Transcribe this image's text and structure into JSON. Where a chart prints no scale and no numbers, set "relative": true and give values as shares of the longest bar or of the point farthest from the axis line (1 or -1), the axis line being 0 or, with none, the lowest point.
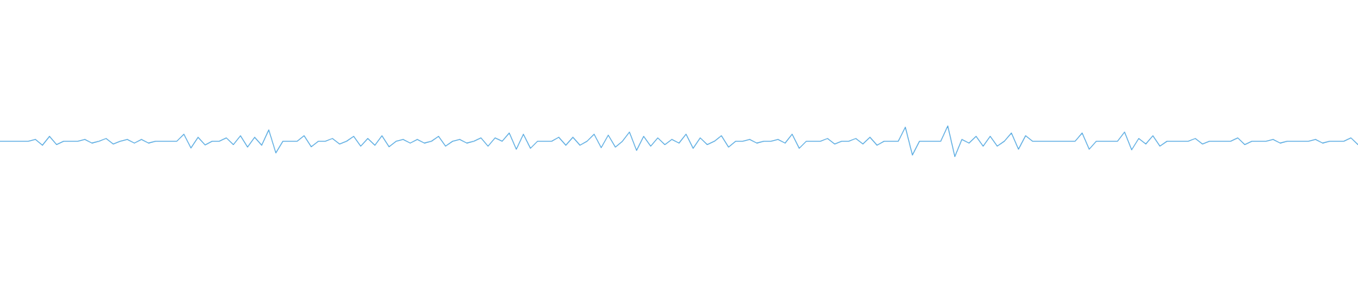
{
  "chart_data": {
    "type": "line",
    "relative": true,
    "categories": [
      null,
      null,
      null,
      null,
      null,
      null,
      null,
      null,
      null,
      null,
      null,
      null,
      null,
      null,
      null,
      null,
      null,
      null,
      null,
      null,
      null,
      null,
      null,
      null,
      null,
      null,
      null,
      null,
      null,
      null,
      null,
      null,
      null,
      null,
      null,
      null,
      null,
      null,
      null,
      null,
      null,
      null,
      null,
      null,
      null,
      null,
      null,
      null,
      null,
      null,
      null,
      null,
      null,
      null,
      null,
      null,
      null,
      null,
      null,
      null,
      null,
      null,
      null,
      null,
      null,
      null,
      null,
      null,
      null,
      null,
      null,
      null,
      null,
      null,
      null,
      null,
      null,
      null,
      null,
      null,
      null,
      null,
      null,
      null,
      null,
      null,
      null,
      null,
      null,
      null,
      null,
      null,
      null,
      null,
      null,
      null,
      null,
      null,
      null,
      null,
      null,
      null,
      null,
      null,
      null,
      null,
      null,
      null,
      null,
      null,
      null,
      null,
      null,
      null,
      null,
      null,
      null,
      null,
      null,
      null,
      null,
      null,
      null,
      null,
      null,
      null,
      null,
      null,
      null,
      null,
      null,
      null,
      null,
      null,
      null,
      null,
      null,
      null,
      null,
      null,
      null,
      null,
      null,
      null,
      null,
      null,
      null,
      null,
      null,
      null,
      null,
      null,
      null,
      null,
      null,
      null,
      null,
      null,
      null,
      null,
      null,
      null,
      null,
      null,
      null,
      null,
      null,
      null,
      null,
      null,
      null,
      null,
      null,
      null,
      null,
      null,
      null,
      null,
      null,
      null,
      null,
      null,
      null,
      null,
      null,
      null,
      null,
      null,
      null,
      null,
      null,
      null,
      null
    ],
    "color": "#5dade2",
    "values": [
      0.5,
      0.5,
      0.5,
      0.5,
      0.5,
      0.56,
      0.37,
      0.66,
      0.39,
      0.5,
      0.5,
      0.5,
      0.56,
      0.44,
      0.5,
      0.59,
      0.41,
      0.5,
      0.56,
      0.44,
      0.56,
      0.44,
      0.5,
      0.5,
      0.5,
      0.5,
      0.73,
      0.28,
      0.63,
      0.38,
      0.5,
      0.5,
      0.61,
      0.39,
      0.68,
      0.31,
      0.63,
      0.37,
      0.87,
      0.12,
      0.5,
      0.5,
      0.5,
      0.68,
      0.32,
      0.5,
      0.5,
      0.59,
      0.41,
      0.5,
      0.66,
      0.34,
      0.59,
      0.37,
      0.68,
      0.32,
      0.5,
      0.56,
      0.44,
      0.56,
      0.44,
      0.5,
      0.66,
      0.34,
      0.5,
      0.56,
      0.44,
      0.5,
      0.61,
      0.34,
      0.61,
      0.5,
      0.77,
      0.24,
      0.73,
      0.27,
      0.5,
      0.5,
      0.5,
      0.63,
      0.37,
      0.63,
      0.37,
      0.5,
      0.73,
      0.29,
      0.7,
      0.31,
      0.5,
      0.8,
      0.2,
      0.66,
      0.34,
      0.61,
      0.39,
      0.56,
      0.44,
      0.73,
      0.27,
      0.61,
      0.39,
      0.5,
      0.68,
      0.31,
      0.5,
      0.5,
      0.56,
      0.44,
      0.5,
      0.5,
      0.56,
      0.44,
      0.73,
      0.27,
      0.5,
      0.5,
      0.5,
      0.59,
      0.41,
      0.5,
      0.5,
      0.59,
      0.41,
      0.63,
      0.37,
      0.5,
      0.5,
      0.5,
      0.96,
      0.05,
      0.5,
      0.5,
      0.5,
      0.5,
      1,
      0,
      0.56,
      0.44,
      0.66,
      0.34,
      0.66,
      0.34,
      0.5,
      0.77,
      0.24,
      0.68,
      0.5,
      0.5,
      0.5,
      0.5,
      0.5,
      0.5,
      0.5,
      0.77,
      0.24,
      0.5,
      0.5,
      0.5,
      0.5,
      0.8,
      0.22,
      0.59,
      0.41,
      0.68,
      0.34,
      0.5,
      0.5,
      0.5,
      0.5,
      0.59,
      0.41,
      0.5,
      0.5,
      0.5,
      0.5,
      0.61,
      0.39,
      0.5,
      0.5,
      0.5,
      0.56,
      0.44,
      0.5,
      0.5,
      0.5,
      0.5,
      0.56,
      0.44,
      0.5,
      0.5,
      0.5,
      0.61,
      0.39
    ]
  }
}
